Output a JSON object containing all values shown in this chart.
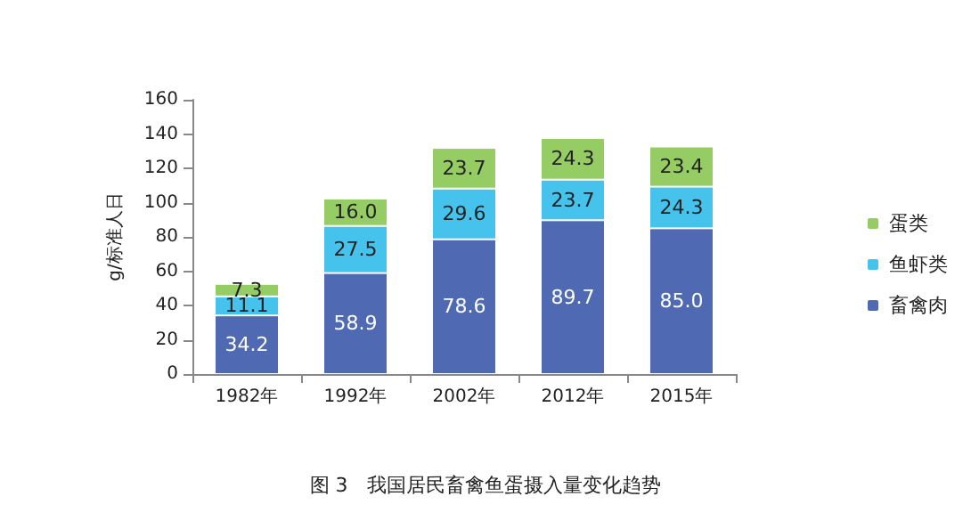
{
  "chart_data": {
    "type": "bar",
    "stacked": true,
    "title": "图 3　我国居民畜禽鱼蛋摄入量变化趋势",
    "ylabel": "g/标准人日",
    "categories": [
      "1982年",
      "1992年",
      "2002年",
      "2012年",
      "2015年"
    ],
    "series": [
      {
        "name": "畜禽肉",
        "color": "#4f69b2",
        "values": [
          34.2,
          58.9,
          78.6,
          89.7,
          85.0
        ],
        "value_labels": [
          "34.2",
          "58.9",
          "78.6",
          "89.7",
          "85.0"
        ]
      },
      {
        "name": "鱼虾类",
        "color": "#45c3ec",
        "values": [
          11.1,
          27.5,
          29.6,
          23.7,
          24.3
        ],
        "value_labels": [
          "11.1",
          "27.5",
          "29.6",
          "23.7",
          "24.3"
        ]
      },
      {
        "name": "蛋类",
        "color": "#96cc64",
        "values": [
          7.3,
          16.0,
          23.7,
          24.3,
          23.4
        ],
        "value_labels": [
          "7.3",
          "16.0",
          "23.7",
          "24.3",
          "23.4"
        ]
      }
    ],
    "ylim": [
      0,
      160
    ],
    "yticks": [
      0,
      20,
      40,
      60,
      80,
      100,
      120,
      140,
      160
    ],
    "grid": false,
    "legend": "right"
  }
}
